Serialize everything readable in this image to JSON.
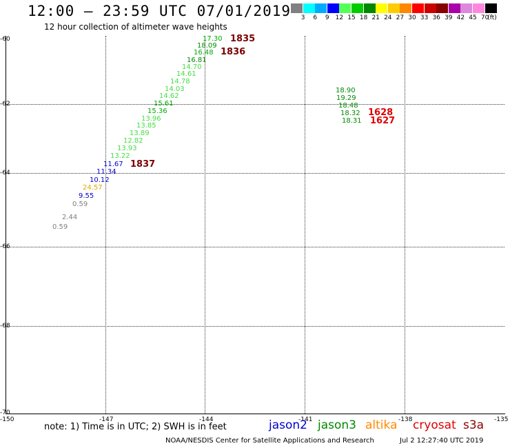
{
  "title": "12:00 – 23:59 UTC 07/01/2019",
  "subtitle": "12 hour collection of altimeter wave heights",
  "color_scale": {
    "unit": "(ft)",
    "swatches": [
      "#808080",
      "#00ffff",
      "#00aaff",
      "#0000ff",
      "#55ff55",
      "#00cc00",
      "#008800",
      "#ffff00",
      "#ffcc00",
      "#ff8800",
      "#ff0000",
      "#cc0000",
      "#880000",
      "#aa00aa",
      "#dd88dd",
      "#ff88dd",
      "#000000"
    ],
    "labels": [
      "3",
      "6",
      "9",
      "12",
      "15",
      "18",
      "21",
      "24",
      "27",
      "30",
      "33",
      "36",
      "39",
      "42",
      "45",
      "70"
    ]
  },
  "axes": {
    "y_labels": [
      "-60",
      "-62",
      "-64",
      "-66",
      "-68",
      "-70"
    ],
    "x_labels": [
      "-150",
      "-147",
      "-144",
      "-141",
      "-138",
      "-135"
    ]
  },
  "observations": [
    {
      "text": "17.30",
      "color": "#00aa00"
    },
    {
      "text": "18.09",
      "color": "#008800"
    },
    {
      "text": "16.48",
      "color": "#00aa00"
    },
    {
      "text": "16.81",
      "color": "#008800"
    },
    {
      "text": "14.70",
      "color": "#44dd44"
    },
    {
      "text": "14.61",
      "color": "#44dd44"
    },
    {
      "text": "14.78",
      "color": "#44dd44"
    },
    {
      "text": "14.03",
      "color": "#44dd44"
    },
    {
      "text": "14.62",
      "color": "#44dd44"
    },
    {
      "text": "15.61",
      "color": "#00aa00"
    },
    {
      "text": "15.36",
      "color": "#00aa00"
    },
    {
      "text": "13.96",
      "color": "#44dd44"
    },
    {
      "text": "13.85",
      "color": "#44dd44"
    },
    {
      "text": "13.89",
      "color": "#44dd44"
    },
    {
      "text": "12.82",
      "color": "#44dd44"
    },
    {
      "text": "13.93",
      "color": "#44dd44"
    },
    {
      "text": "13.22",
      "color": "#44dd44"
    },
    {
      "text": "11.67",
      "color": "#0000cc"
    },
    {
      "text": "11.34",
      "color": "#0000cc"
    },
    {
      "text": "10.12",
      "color": "#0000cc"
    },
    {
      "text": "24.57",
      "color": "#ddaa00"
    },
    {
      "text": "9.55",
      "color": "#0000cc"
    },
    {
      "text": "0.59",
      "color": "#808080"
    },
    {
      "text": "2.44",
      "color": "#808080"
    },
    {
      "text": "0.59",
      "color": "#808080"
    },
    {
      "text": "18.90",
      "color": "#008800"
    },
    {
      "text": "19.29",
      "color": "#008800"
    },
    {
      "text": "18.48",
      "color": "#008800"
    },
    {
      "text": "18.32",
      "color": "#008800"
    },
    {
      "text": "18.31",
      "color": "#008800"
    }
  ],
  "pass_times": [
    {
      "text": "1835"
    },
    {
      "text": "1836"
    },
    {
      "text": "1837"
    },
    {
      "text": "1628"
    },
    {
      "text": "1627"
    }
  ],
  "note": "note: 1) Time is in UTC; 2) SWH is in feet",
  "legend": [
    {
      "text": "jason2",
      "color": "#0000cc"
    },
    {
      "text": "jason3",
      "color": "#008800"
    },
    {
      "text": "altika",
      "color": "#ff8800"
    },
    {
      "text": "cryosat",
      "color": "#dd0000"
    },
    {
      "text": "s3a",
      "color": "#880000"
    }
  ],
  "footer": "NOAA/NESDIS Center for Satellite Applications and Research",
  "footer_date": "Jul  2 12:27:40 UTC 2019"
}
